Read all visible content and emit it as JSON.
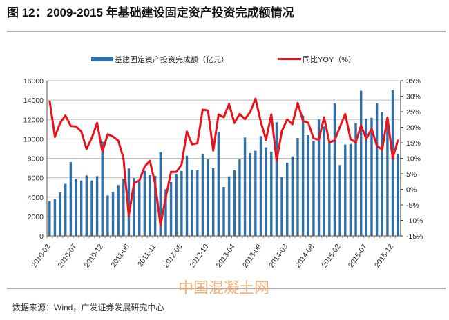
{
  "title": "图 12：2009-2015 年基础建设固定资产投资完成额情况",
  "footer": "数据来源：Wind，广发证券发展研究中心",
  "watermark": "中国混凝土网",
  "colors": {
    "bar": "#2e6fa7",
    "line": "#e8121b",
    "grid": "#bfbfbf"
  },
  "chart_data": {
    "type": "bar+line",
    "legend": [
      {
        "label": "基建固定资产投资完成额（亿元）",
        "type": "bar"
      },
      {
        "label": "同比YOY（%）",
        "type": "line"
      }
    ],
    "legend_position": "top-center",
    "grid": true,
    "left_axis": {
      "range": [
        0,
        16000
      ],
      "ticks": [
        "0",
        "2000",
        "4000",
        "6000",
        "8000",
        "10000",
        "12000",
        "14000",
        "16000"
      ]
    },
    "right_axis": {
      "range": [
        -15,
        35
      ],
      "ticks": [
        "-15%",
        "-10%",
        "-5%",
        "0%",
        "5%",
        "10%",
        "15%",
        "20%",
        "25%",
        "30%",
        "35%"
      ]
    },
    "x_tick_labels": [
      "2010-02",
      "2010-07",
      "2010-12",
      "2011-06",
      "2011-11",
      "2012-05",
      "2012-10",
      "2013-04",
      "2013-09",
      "2014-03",
      "2014-08",
      "2015-02",
      "2015-07",
      "2015-12"
    ],
    "categories": [
      "2010-02",
      "2010-03",
      "2010-04",
      "2010-05",
      "2010-06",
      "2010-07",
      "2010-08",
      "2010-09",
      "2010-10",
      "2010-11",
      "2010-12",
      "2011-02",
      "2011-03",
      "2011-04",
      "2011-05",
      "2011-06",
      "2011-07",
      "2011-08",
      "2011-09",
      "2011-10",
      "2011-11",
      "2011-12",
      "2012-02",
      "2012-03",
      "2012-04",
      "2012-05",
      "2012-06",
      "2012-07",
      "2012-08",
      "2012-09",
      "2012-10",
      "2012-11",
      "2012-12",
      "2013-02",
      "2013-03",
      "2013-04",
      "2013-05",
      "2013-06",
      "2013-07",
      "2013-08",
      "2013-09",
      "2013-10",
      "2013-11",
      "2013-12",
      "2014-02",
      "2014-03",
      "2014-04",
      "2014-05",
      "2014-06",
      "2014-07",
      "2014-08",
      "2014-09",
      "2014-10",
      "2014-11",
      "2014-12",
      "2015-02",
      "2015-03",
      "2015-04",
      "2015-05",
      "2015-06",
      "2015-07",
      "2015-08",
      "2015-09",
      "2015-10",
      "2015-11",
      "2015-12",
      "2016-02"
    ],
    "series": [
      {
        "name": "基建固定资产投资完成额（亿元）",
        "axis": "left",
        "values": [
          3580,
          3810,
          4480,
          5360,
          7610,
          5880,
          5710,
          6230,
          5710,
          6160,
          9700,
          4170,
          4530,
          5240,
          5880,
          6950,
          5970,
          5690,
          6710,
          6260,
          6190,
          8630,
          4810,
          5550,
          6350,
          6700,
          8270,
          6830,
          6760,
          8440,
          7890,
          6970,
          10740,
          5050,
          6140,
          6760,
          7890,
          10150,
          8530,
          8770,
          10290,
          9130,
          8680,
          11710,
          6050,
          7540,
          8200,
          10100,
          12400,
          10380,
          9790,
          12000,
          11290,
          9620,
          13660,
          7300,
          9410,
          9480,
          11620,
          14960,
          12090,
          12180,
          13660,
          12750,
          11760,
          15030,
          8440
        ]
      },
      {
        "name": "同比YOY（%）",
        "axis": "right",
        "values": [
          28.6,
          16.9,
          21.4,
          23.8,
          20.4,
          20.3,
          18.6,
          13.0,
          16.6,
          21.4,
          12.1,
          17.7,
          17.0,
          15.7,
          9.9,
          -8.6,
          2.1,
          2.8,
          7.3,
          9.2,
          1.7,
          -11.6,
          -2.7,
          5.6,
          5.6,
          8.0,
          18.6,
          14.5,
          14.9,
          25.7,
          25.4,
          12.5,
          24.1,
          23.2,
          27.5,
          21.4,
          24.3,
          22.6,
          24.9,
          29.2,
          21.8,
          16.0,
          24.1,
          9.2,
          18.8,
          22.5,
          21.0,
          27.8,
          22.1,
          21.4,
          16.4,
          16.0,
          23.2,
          15.1,
          15.8,
          20.1,
          24.3,
          16.2,
          15.1,
          20.6,
          16.2,
          19.5,
          14.0,
          12.8,
          23.2,
          10.0,
          16.0
        ]
      }
    ]
  }
}
